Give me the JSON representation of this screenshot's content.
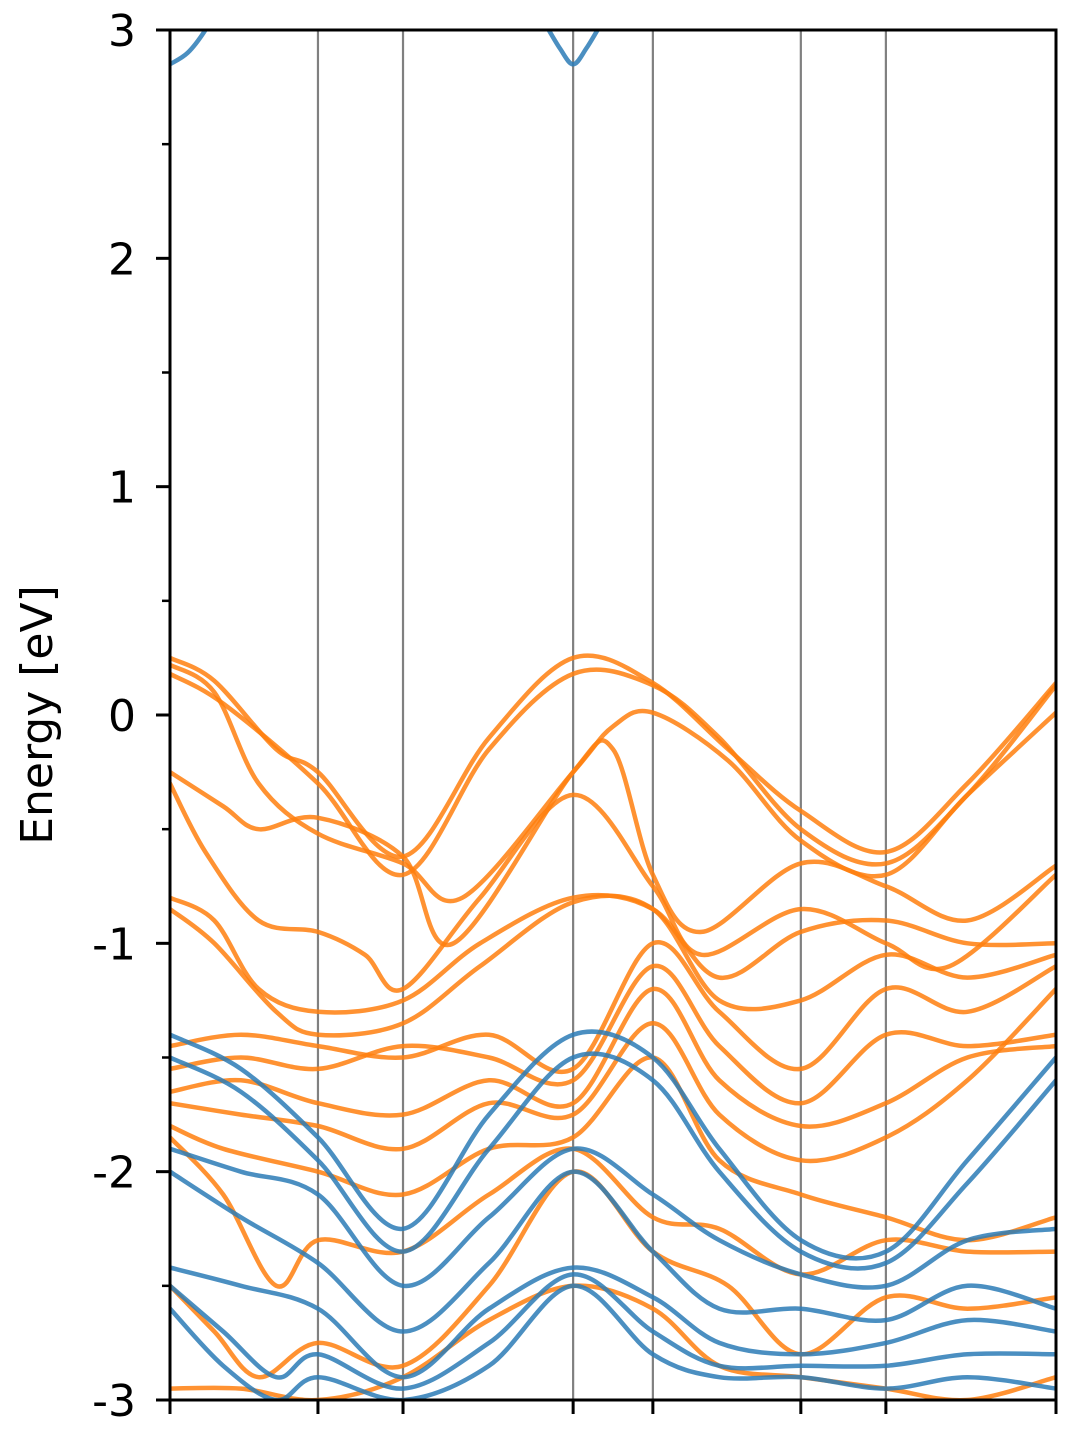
{
  "chart_data": {
    "type": "line",
    "title": "",
    "xlabel": "",
    "ylabel": "Energy [eV]",
    "ylim": [
      -3,
      3
    ],
    "xlim": [
      0,
      1
    ],
    "y_ticks": [
      3,
      2,
      1,
      0,
      -1,
      -2,
      -3
    ],
    "y_tick_labels": [
      "3",
      "2",
      "1",
      "0",
      "-1",
      "-2",
      "-3"
    ],
    "y_minor_ticks": [
      2.5,
      1.5,
      0.5,
      -0.5,
      -1.5,
      -2.5
    ],
    "x_ticks": [
      0,
      0.167,
      0.263,
      0.455,
      0.545,
      0.712,
      0.808,
      1
    ],
    "kpoint_lines": [
      0.167,
      0.263,
      0.455,
      0.545,
      0.712,
      0.808
    ],
    "grid": false,
    "legend": "none",
    "colors": {
      "blue": "#2c7bb6",
      "orange": "#ff7f0e",
      "kline": "#808080"
    },
    "series": [
      {
        "color": "blue",
        "x": [
          0,
          0.02,
          0.04,
          0.045
        ],
        "y": [
          2.85,
          2.9,
          3.0,
          3.05
        ]
      },
      {
        "color": "blue",
        "x": [
          0.42,
          0.44,
          0.455,
          0.47,
          0.49
        ],
        "y": [
          3.05,
          2.92,
          2.85,
          2.92,
          3.05
        ]
      },
      {
        "color": "orange",
        "x": [
          0,
          0.05,
          0.12,
          0.167,
          0.263,
          0.36,
          0.455,
          0.545,
          0.63,
          0.712,
          0.808,
          0.9,
          1
        ],
        "y": [
          0.25,
          0.15,
          -0.15,
          -0.25,
          -0.62,
          -0.1,
          0.25,
          0.14,
          -0.15,
          -0.42,
          -0.6,
          -0.3,
          0.14
        ]
      },
      {
        "color": "orange",
        "x": [
          0,
          0.06,
          0.167,
          0.263,
          0.36,
          0.455,
          0.545,
          0.62,
          0.712,
          0.808,
          0.9,
          1
        ],
        "y": [
          0.18,
          0.05,
          -0.3,
          -0.7,
          -0.15,
          0.18,
          0.13,
          -0.1,
          -0.5,
          -0.65,
          -0.35,
          0.13
        ]
      },
      {
        "color": "orange",
        "x": [
          0,
          0.05,
          0.1,
          0.167,
          0.263,
          0.33,
          0.455,
          0.5,
          0.545,
          0.63,
          0.712,
          0.808,
          0.9,
          1
        ],
        "y": [
          0.22,
          0.1,
          -0.3,
          -0.52,
          -0.65,
          -0.8,
          -0.25,
          -0.05,
          0.01,
          -0.2,
          -0.55,
          -0.7,
          -0.35,
          0.01
        ]
      },
      {
        "color": "orange",
        "x": [
          0,
          0.06,
          0.1,
          0.167,
          0.263,
          0.32,
          0.455,
          0.5,
          0.545,
          0.6,
          0.712,
          0.808,
          0.9,
          1
        ],
        "y": [
          -0.25,
          -0.4,
          -0.5,
          -0.45,
          -0.62,
          -1.0,
          -0.25,
          -0.15,
          -0.7,
          -0.95,
          -0.65,
          -0.75,
          -0.9,
          -0.66
        ]
      },
      {
        "color": "orange",
        "x": [
          0,
          0.04,
          0.1,
          0.167,
          0.22,
          0.263,
          0.35,
          0.455,
          0.545,
          0.6,
          0.712,
          0.808,
          0.88,
          1
        ],
        "y": [
          -0.3,
          -0.6,
          -0.9,
          -0.95,
          -1.05,
          -1.2,
          -0.8,
          -0.35,
          -0.75,
          -1.05,
          -0.85,
          -1.0,
          -1.1,
          -0.7
        ]
      },
      {
        "color": "orange",
        "x": [
          0,
          0.05,
          0.1,
          0.167,
          0.263,
          0.35,
          0.455,
          0.545,
          0.62,
          0.712,
          0.808,
          0.9,
          1
        ],
        "y": [
          -0.8,
          -0.9,
          -1.2,
          -1.3,
          -1.25,
          -1.0,
          -0.8,
          -0.85,
          -1.15,
          -0.95,
          -0.9,
          -1.0,
          -1.0
        ]
      },
      {
        "color": "orange",
        "x": [
          0,
          0.05,
          0.12,
          0.167,
          0.263,
          0.35,
          0.455,
          0.545,
          0.62,
          0.712,
          0.808,
          0.9,
          1
        ],
        "y": [
          -0.85,
          -1.0,
          -1.3,
          -1.4,
          -1.35,
          -1.1,
          -0.82,
          -0.85,
          -1.25,
          -1.25,
          -1.05,
          -1.15,
          -1.05
        ]
      },
      {
        "color": "orange",
        "x": [
          0,
          0.08,
          0.167,
          0.263,
          0.36,
          0.455,
          0.545,
          0.62,
          0.712,
          0.808,
          0.9,
          1
        ],
        "y": [
          -1.45,
          -1.4,
          -1.45,
          -1.5,
          -1.4,
          -1.55,
          -1.0,
          -1.3,
          -1.55,
          -1.2,
          -1.3,
          -1.1
        ]
      },
      {
        "color": "orange",
        "x": [
          0,
          0.08,
          0.167,
          0.263,
          0.36,
          0.455,
          0.545,
          0.62,
          0.712,
          0.808,
          0.9,
          1
        ],
        "y": [
          -1.55,
          -1.5,
          -1.55,
          -1.45,
          -1.5,
          -1.6,
          -1.1,
          -1.45,
          -1.7,
          -1.4,
          -1.45,
          -1.4
        ]
      },
      {
        "color": "orange",
        "x": [
          0,
          0.08,
          0.167,
          0.263,
          0.36,
          0.455,
          0.545,
          0.62,
          0.712,
          0.808,
          0.9,
          1
        ],
        "y": [
          -1.65,
          -1.6,
          -1.7,
          -1.75,
          -1.6,
          -1.7,
          -1.2,
          -1.6,
          -1.8,
          -1.7,
          -1.5,
          -1.45
        ]
      },
      {
        "color": "orange",
        "x": [
          0,
          0.08,
          0.167,
          0.263,
          0.36,
          0.455,
          0.545,
          0.62,
          0.712,
          0.808,
          0.9,
          1
        ],
        "y": [
          -1.7,
          -1.75,
          -1.8,
          -1.9,
          -1.7,
          -1.75,
          -1.35,
          -1.75,
          -1.95,
          -1.85,
          -1.6,
          -1.2
        ]
      },
      {
        "color": "orange",
        "x": [
          0,
          0.06,
          0.167,
          0.263,
          0.36,
          0.455,
          0.545,
          0.62,
          0.712,
          0.808,
          0.9,
          1
        ],
        "y": [
          -1.8,
          -1.9,
          -2.0,
          -2.1,
          -1.9,
          -1.85,
          -1.5,
          -1.95,
          -2.1,
          -2.2,
          -2.3,
          -2.2
        ]
      },
      {
        "color": "orange",
        "x": [
          0,
          0.06,
          0.12,
          0.167,
          0.263,
          0.36,
          0.455,
          0.545,
          0.62,
          0.712,
          0.808,
          0.9,
          1
        ],
        "y": [
          -1.85,
          -2.1,
          -2.5,
          -2.3,
          -2.35,
          -2.1,
          -1.9,
          -2.2,
          -2.25,
          -2.45,
          -2.3,
          -2.35,
          -2.35
        ]
      },
      {
        "color": "orange",
        "x": [
          0,
          0.05,
          0.1,
          0.167,
          0.263,
          0.36,
          0.455,
          0.545,
          0.63,
          0.712,
          0.808,
          0.9,
          1
        ],
        "y": [
          -2.5,
          -2.7,
          -2.9,
          -2.75,
          -2.85,
          -2.5,
          -2.0,
          -2.35,
          -2.5,
          -2.8,
          -2.55,
          -2.6,
          -2.55
        ]
      },
      {
        "color": "orange",
        "x": [
          0,
          0.08,
          0.167,
          0.263,
          0.36,
          0.455,
          0.545,
          0.62,
          0.712,
          0.808,
          0.9,
          1
        ],
        "y": [
          -2.95,
          -2.95,
          -3.0,
          -2.9,
          -2.65,
          -2.5,
          -2.6,
          -2.85,
          -2.9,
          -2.95,
          -3.0,
          -2.9
        ]
      },
      {
        "color": "blue",
        "x": [
          0,
          0.08,
          0.167,
          0.263,
          0.36,
          0.455,
          0.545,
          0.62,
          0.712,
          0.808,
          0.9,
          1
        ],
        "y": [
          -1.4,
          -1.55,
          -1.85,
          -2.25,
          -1.75,
          -1.4,
          -1.5,
          -1.9,
          -2.3,
          -2.35,
          -1.95,
          -1.5
        ]
      },
      {
        "color": "blue",
        "x": [
          0,
          0.08,
          0.167,
          0.263,
          0.36,
          0.455,
          0.545,
          0.62,
          0.712,
          0.808,
          0.9,
          1
        ],
        "y": [
          -1.5,
          -1.65,
          -1.95,
          -2.35,
          -1.9,
          -1.5,
          -1.6,
          -2.0,
          -2.35,
          -2.4,
          -2.05,
          -1.6
        ]
      },
      {
        "color": "blue",
        "x": [
          0,
          0.08,
          0.167,
          0.263,
          0.36,
          0.455,
          0.545,
          0.62,
          0.712,
          0.808,
          0.9,
          1
        ],
        "y": [
          -1.9,
          -2.0,
          -2.1,
          -2.5,
          -2.2,
          -1.9,
          -2.1,
          -2.3,
          -2.45,
          -2.5,
          -2.3,
          -2.25
        ]
      },
      {
        "color": "blue",
        "x": [
          0,
          0.08,
          0.167,
          0.263,
          0.36,
          0.455,
          0.545,
          0.62,
          0.712,
          0.808,
          0.9,
          1
        ],
        "y": [
          -2.0,
          -2.2,
          -2.4,
          -2.7,
          -2.4,
          -2.0,
          -2.35,
          -2.6,
          -2.6,
          -2.65,
          -2.5,
          -2.6
        ]
      },
      {
        "color": "blue",
        "x": [
          0,
          0.08,
          0.167,
          0.263,
          0.36,
          0.455,
          0.545,
          0.62,
          0.712,
          0.808,
          0.9,
          1
        ],
        "y": [
          -2.42,
          -2.5,
          -2.6,
          -2.9,
          -2.6,
          -2.42,
          -2.55,
          -2.75,
          -2.8,
          -2.75,
          -2.65,
          -2.7
        ]
      },
      {
        "color": "blue",
        "x": [
          0,
          0.06,
          0.12,
          0.167,
          0.263,
          0.36,
          0.455,
          0.545,
          0.62,
          0.712,
          0.808,
          0.9,
          1
        ],
        "y": [
          -2.5,
          -2.7,
          -2.9,
          -2.8,
          -2.95,
          -2.75,
          -2.45,
          -2.7,
          -2.85,
          -2.85,
          -2.85,
          -2.8,
          -2.8
        ]
      },
      {
        "color": "blue",
        "x": [
          0,
          0.06,
          0.12,
          0.167,
          0.263,
          0.36,
          0.455,
          0.545,
          0.62,
          0.712,
          0.808,
          0.9,
          1
        ],
        "y": [
          -2.6,
          -2.85,
          -3.0,
          -2.9,
          -3.0,
          -2.85,
          -2.5,
          -2.8,
          -2.9,
          -2.9,
          -2.95,
          -2.9,
          -2.95
        ]
      }
    ]
  }
}
